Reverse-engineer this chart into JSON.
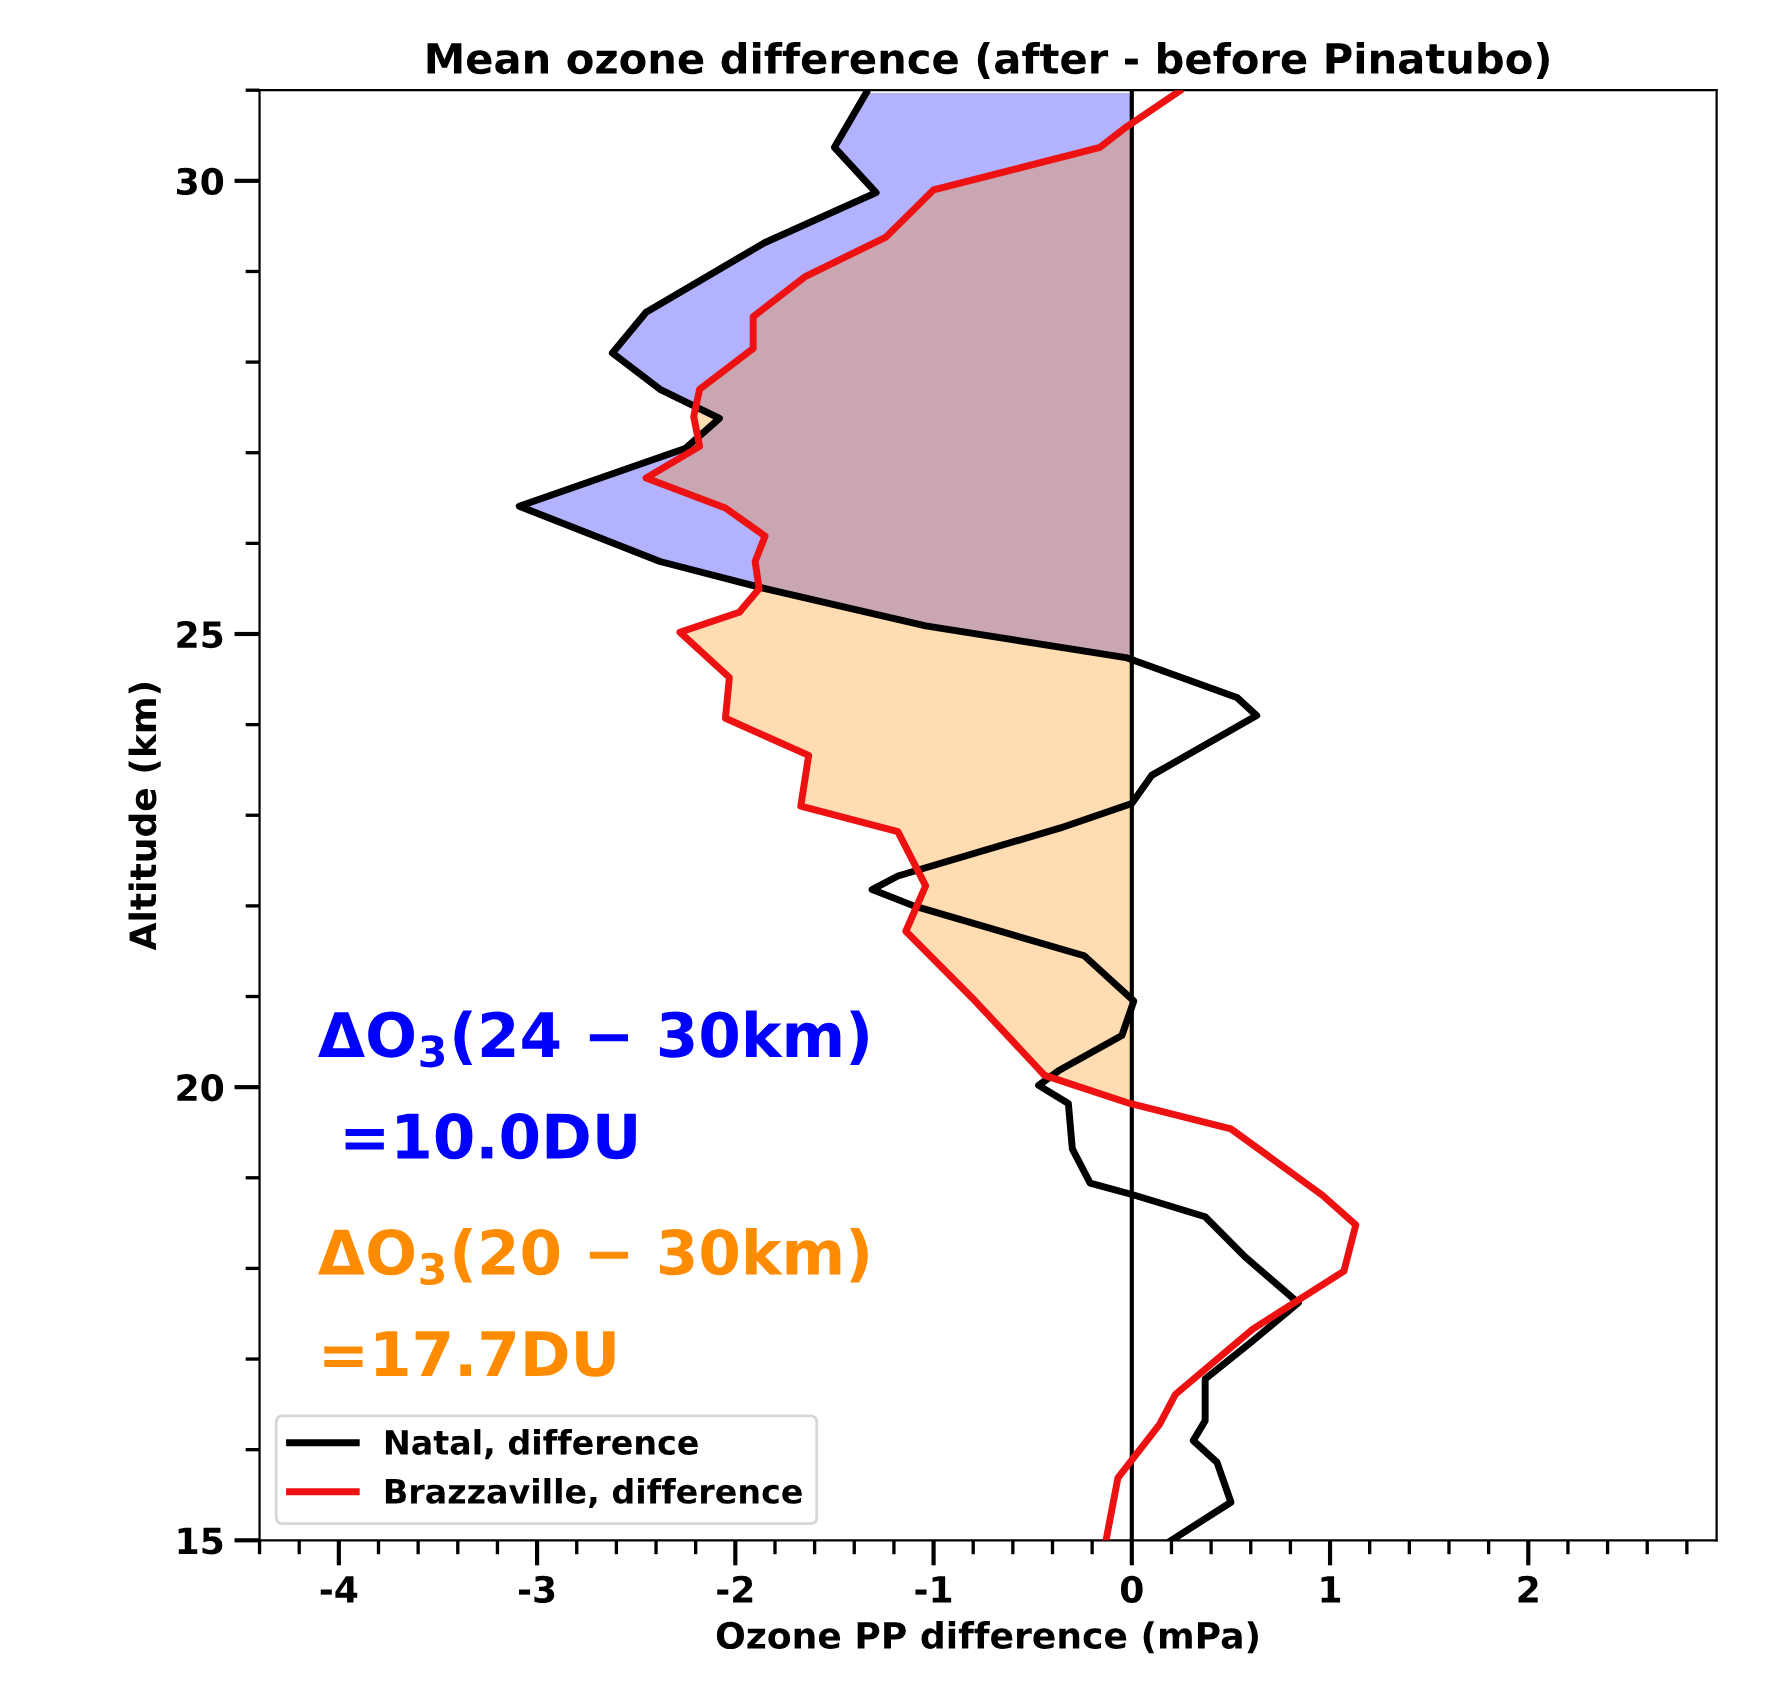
{
  "chart_data": {
    "type": "line",
    "orientation": "horizontal",
    "title": "Mean ozone difference (after - before Pinatubo)",
    "xlabel": "Ozone PP difference (mPa)",
    "ylabel": "Altitude (km)",
    "xlim": [
      -4.4,
      2.95
    ],
    "xticks": [
      -4,
      -3,
      -2,
      -1,
      0,
      1,
      2
    ],
    "ylim": [
      15,
      31
    ],
    "yticks": [
      15,
      20,
      25,
      30
    ],
    "grid": false,
    "legend": "bottom left",
    "ref_lines": [
      {
        "axis": "x",
        "value": 0,
        "color": "#000000"
      }
    ],
    "series": [
      {
        "type": "area",
        "color": "#0000ff",
        "x": [
          30.97,
          30.37,
          29.87,
          29.32,
          28.55,
          28.1,
          27.7,
          27.38,
          27.05,
          26.41,
          25.8,
          25.5,
          25.09,
          24.74
        ],
        "values": [
          -1.34,
          -1.5,
          -1.29,
          -1.85,
          -2.45,
          -2.62,
          -2.38,
          -2.08,
          -2.25,
          -3.09,
          -2.38,
          -1.85,
          -1.04,
          -0.03
        ]
      },
      {
        "type": "area",
        "color": "#ff8c00",
        "x": [
          30.59,
          30.37,
          29.9,
          29.38,
          28.94,
          28.5,
          28.15,
          27.7,
          27.4,
          27.07,
          26.72,
          26.39,
          26.08,
          25.8,
          25.5,
          25.24,
          25.02,
          24.52,
          24.07,
          23.66,
          23.1,
          22.82,
          22.22,
          21.72,
          20.95,
          20.13,
          19.82
        ],
        "values": [
          -0.03,
          -0.16,
          -1.0,
          -1.24,
          -1.65,
          -1.91,
          -1.91,
          -2.18,
          -2.21,
          -2.18,
          -2.45,
          -2.05,
          -1.85,
          -1.9,
          -1.88,
          -1.98,
          -2.28,
          -2.03,
          -2.05,
          -1.63,
          -1.67,
          -1.18,
          -1.04,
          -1.14,
          -0.79,
          -0.44,
          -0.01
        ]
      },
      {
        "name": "Natal, difference",
        "color": "#000000",
        "x": [
          30.97,
          30.37,
          29.87,
          29.32,
          28.55,
          28.1,
          27.7,
          27.38,
          27.05,
          26.41,
          25.8,
          25.5,
          25.09,
          24.74,
          24.3,
          24.1,
          23.44,
          23.13,
          22.86,
          22.33,
          22.18,
          22.0,
          21.45,
          20.95,
          20.57,
          20.18,
          20.02,
          19.82,
          19.32,
          18.94,
          18.81,
          18.57,
          18.13,
          17.62,
          17.2,
          16.78,
          16.32,
          16.1,
          15.86,
          15.42,
          15.0
        ],
        "values": [
          -1.34,
          -1.5,
          -1.29,
          -1.85,
          -2.45,
          -2.62,
          -2.38,
          -2.08,
          -2.25,
          -3.09,
          -2.38,
          -1.85,
          -1.04,
          -0.03,
          0.53,
          0.63,
          0.1,
          0.0,
          -0.36,
          -1.18,
          -1.31,
          -1.1,
          -0.24,
          0.01,
          -0.05,
          -0.37,
          -0.47,
          -0.32,
          -0.3,
          -0.21,
          0.01,
          0.37,
          0.57,
          0.84,
          0.61,
          0.37,
          0.37,
          0.31,
          0.43,
          0.5,
          0.2
        ]
      },
      {
        "name": "Brazzaville, difference",
        "color": "#ee1111",
        "x": [
          30.99,
          30.59,
          30.37,
          29.9,
          29.38,
          28.94,
          28.5,
          28.15,
          27.7,
          27.4,
          27.07,
          26.72,
          26.39,
          26.08,
          25.8,
          25.5,
          25.24,
          25.02,
          24.52,
          24.07,
          23.66,
          23.1,
          22.82,
          22.22,
          21.72,
          20.95,
          20.13,
          19.82,
          19.54,
          18.81,
          18.48,
          17.97,
          17.33,
          16.61,
          16.28,
          15.69,
          15.0
        ],
        "values": [
          0.24,
          -0.03,
          -0.16,
          -1.0,
          -1.24,
          -1.65,
          -1.91,
          -1.91,
          -2.18,
          -2.21,
          -2.18,
          -2.45,
          -2.05,
          -1.85,
          -1.9,
          -1.88,
          -1.98,
          -2.28,
          -2.03,
          -2.05,
          -1.63,
          -1.67,
          -1.18,
          -1.04,
          -1.14,
          -0.79,
          -0.44,
          -0.01,
          0.5,
          0.96,
          1.13,
          1.07,
          0.61,
          0.22,
          0.14,
          -0.07,
          -0.13
        ]
      }
    ],
    "annotations": [
      "ΔO$_{3}$(24 − 30km)",
      " =10.0DU",
      "ΔO$_{3}$(20 − 30km)",
      "=17.7DU"
    ]
  }
}
